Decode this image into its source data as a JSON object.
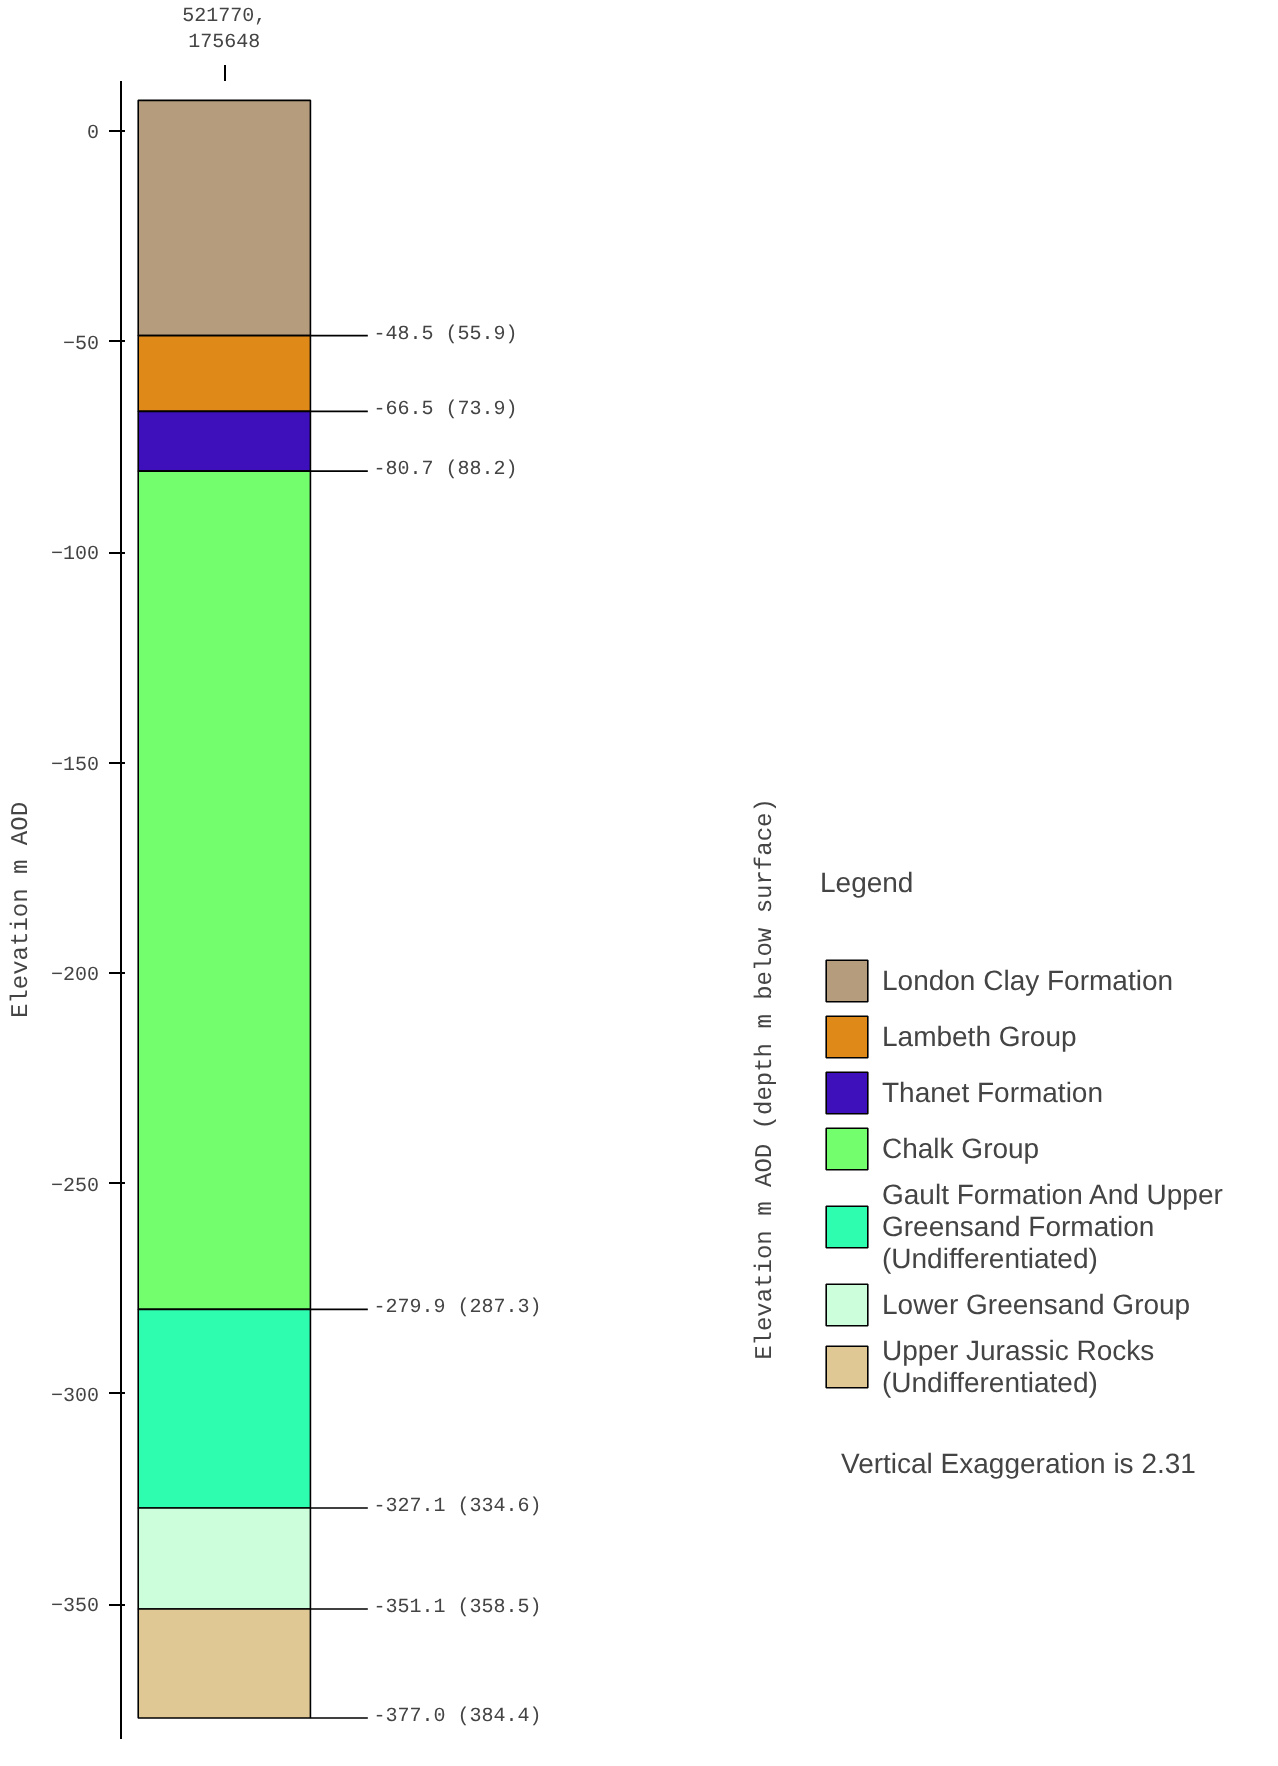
{
  "chart_data": {
    "type": "bar",
    "categories": [
      "521770,\n175648"
    ],
    "ylabel": "Elevation m AOD",
    "legend_title": "Legend",
    "legend": "right",
    "grid": false,
    "ylim": [
      -382,
      12
    ],
    "yticks": [
      0,
      -50,
      -100,
      -150,
      -200,
      -250,
      -300,
      -350
    ],
    "series": [
      {
        "name": "London Clay Formation",
        "color": "#b49c7d",
        "values": [
          -55.9
        ],
        "base": [
          7.4
        ]
      },
      {
        "name": "Lambeth Group",
        "color": "#df8a18",
        "values": [
          -18.0
        ],
        "base": [
          -48.5
        ]
      },
      {
        "name": "Thanet Formation",
        "color": "#3d10bb",
        "values": [
          -14.2
        ],
        "base": [
          -66.5
        ]
      },
      {
        "name": "Chalk Group",
        "color": "#73fe6d",
        "values": [
          -199.2
        ],
        "base": [
          -80.7
        ]
      },
      {
        "name": "Gault Formation And Upper Greensand Formation (Undifferentiated)",
        "color": "#2efdb0",
        "values": [
          -47.2
        ],
        "base": [
          -279.9
        ]
      },
      {
        "name": "Lower Greensand Group",
        "color": "#ccfedc",
        "values": [
          -24.0
        ],
        "base": [
          -327.1
        ]
      },
      {
        "name": "Upper Jurassic Rocks (Undifferentiated)",
        "color": "#dfc893",
        "values": [
          -25.9
        ],
        "base": [
          -351.1
        ]
      }
    ],
    "annotations": [
      "Elevation m AOD (depth m below surface)",
      "Vertical Exaggeration is 2.31"
    ],
    "ref_lines": [
      {
        "axis": "y",
        "value": -48.5,
        "label": "-48.5 (55.9)"
      },
      {
        "axis": "y",
        "value": -66.5,
        "label": "-66.5 (73.9)"
      },
      {
        "axis": "y",
        "value": -80.7,
        "label": "-80.7 (88.2)"
      },
      {
        "axis": "y",
        "value": -279.9,
        "label": "-279.9 (287.3)"
      },
      {
        "axis": "y",
        "value": -327.1,
        "label": "-327.1 (334.6)"
      },
      {
        "axis": "y",
        "value": -351.1,
        "label": "-351.1 (358.5)"
      },
      {
        "axis": "y",
        "value": -377.0,
        "label": "-377.0 (384.4)"
      }
    ]
  }
}
